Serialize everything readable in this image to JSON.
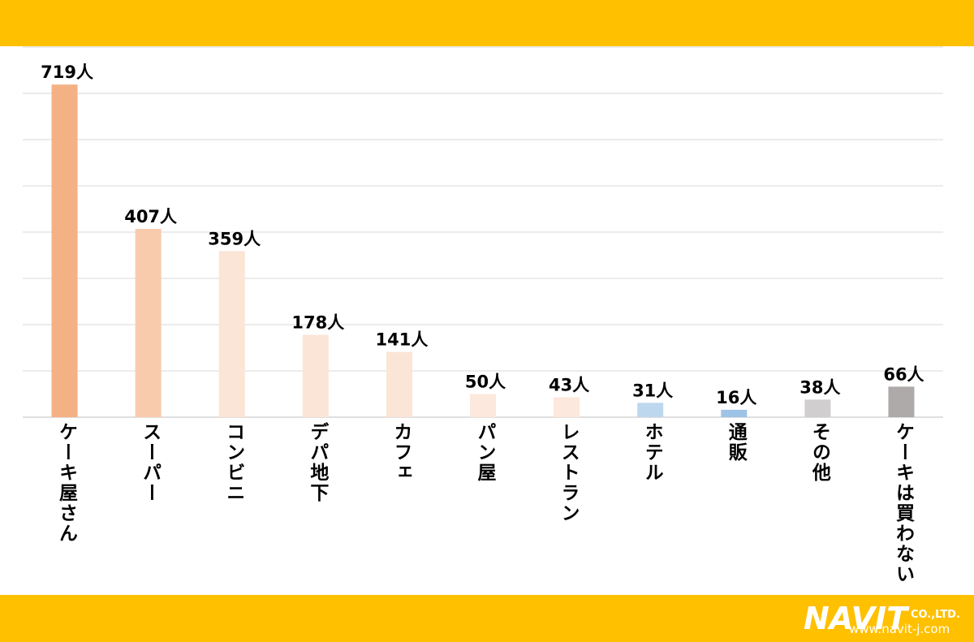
{
  "chart_data": {
    "type": "bar",
    "categories": [
      "ケーキ屋さん",
      "スーパー",
      "コンビニ",
      "デパ地下",
      "カフェ",
      "パン屋",
      "レストラン",
      "ホテル",
      "通販",
      "その他",
      "ケーキは買わない"
    ],
    "values": [
      719,
      407,
      359,
      178,
      141,
      50,
      43,
      31,
      16,
      38,
      66
    ],
    "value_labels": [
      "719人",
      "407人",
      "359人",
      "178人",
      "141人",
      "50人",
      "43人",
      "31人",
      "16人",
      "38人",
      "66人"
    ],
    "colors": [
      "#f4b183",
      "#f8cbad",
      "#fbe5d6",
      "#fbe5d6",
      "#fbe5d6",
      "#fce8dc",
      "#fce8dc",
      "#bdd7ee",
      "#9dc3e6",
      "#d0cece",
      "#aeaaaa"
    ],
    "ylim": [
      0,
      800
    ],
    "yticks": [
      0,
      100,
      200,
      300,
      400,
      500,
      600,
      700,
      800
    ],
    "grid": true
  },
  "logo": {
    "name": "NAVIT",
    "suffix": "CO.,LTD.",
    "url": "www.navit-j.com"
  }
}
